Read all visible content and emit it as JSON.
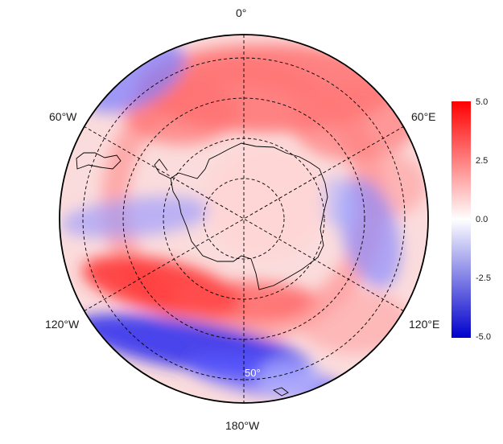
{
  "map": {
    "projection": "south polar stereographic",
    "longitude_labels": {
      "top": "0°",
      "upper_left": "60°W",
      "upper_right": "60°E",
      "lower_left": "120°W",
      "lower_right": "120°E",
      "bottom": "180°W"
    },
    "latitude_label": "50°",
    "graticule": "dashed",
    "colorbar": {
      "ticks": [
        "5.0",
        "2.5",
        "0.0",
        "-2.5",
        "-5.0"
      ],
      "min": -5.0,
      "max": 5.0,
      "colors": {
        "high": "#ff0000",
        "mid": "#ffffff",
        "low": "#0000cc"
      }
    }
  }
}
